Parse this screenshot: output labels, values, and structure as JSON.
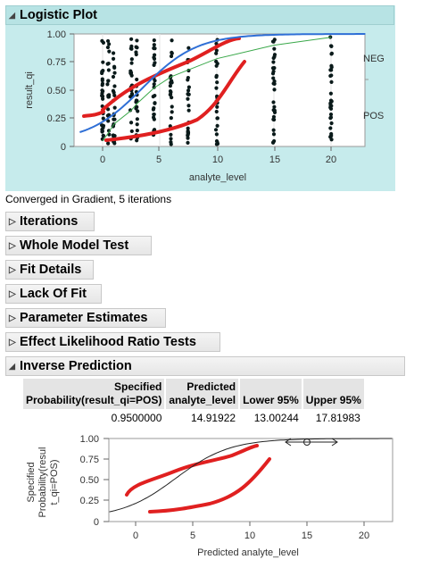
{
  "logistic": {
    "title": "Logistic Plot",
    "status": "Converged in Gradient, 5 iterations",
    "ylabel": "result_qi",
    "xlabel": "analyte_level",
    "yticks": [
      "1.00",
      "0.75",
      "0.50",
      "0.25",
      "0"
    ],
    "xticks": [
      "0",
      "5",
      "10",
      "15",
      "20"
    ],
    "right_labels": [
      "NEG",
      "POS"
    ]
  },
  "sections": [
    {
      "label": "Iterations"
    },
    {
      "label": "Whole Model Test"
    },
    {
      "label": "Fit Details"
    },
    {
      "label": "Lack Of Fit"
    },
    {
      "label": "Parameter Estimates"
    },
    {
      "label": "Effect Likelihood Ratio Tests"
    }
  ],
  "inverse": {
    "title": "Inverse Prediction",
    "headers": {
      "specified_top": "Specified",
      "specified_bottom": "Probability(result_qi=POS)",
      "predicted_top": "Predicted",
      "predicted_bottom": "analyte_level",
      "lower": "Lower 95%",
      "upper": "Upper 95%"
    },
    "row": {
      "specified": "0.9500000",
      "predicted": "14.91922",
      "lower": "13.00244",
      "upper": "17.81983"
    },
    "plot": {
      "ylabel_line1": "Specified",
      "ylabel_line2": "Probability(resul",
      "ylabel_line3": "t_qi=POS)",
      "xlabel": "Predicted analyte_level",
      "yticks": [
        "1.00",
        "0.75",
        "0.50",
        "0.25",
        "0"
      ],
      "xticks": [
        "0",
        "5",
        "10",
        "15",
        "20"
      ]
    }
  },
  "colors": {
    "panel_bg": "#c6ebec",
    "fit_curve": "#2f6fd6",
    "ref_line": "#3aa84a",
    "annotation": "#e02020",
    "points": "#0a1a1a"
  }
}
